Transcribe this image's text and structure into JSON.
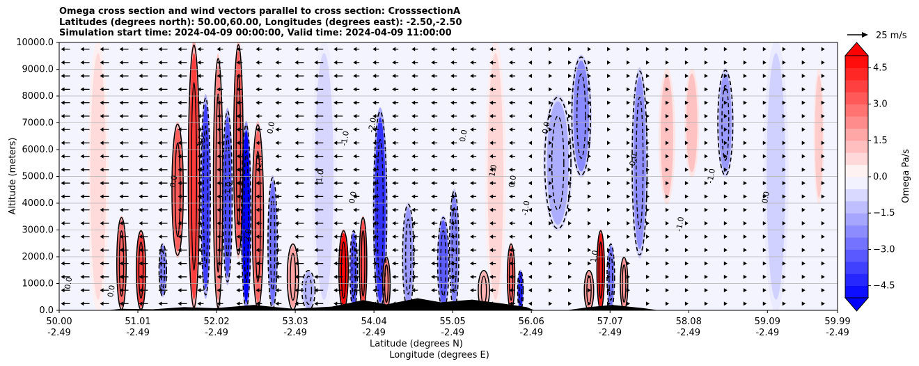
{
  "chart_data": {
    "type": "heatmap",
    "title": [
      "Omega cross section and wind vectors parallel to cross section: CrosssectionA",
      "Latitudes (degrees north): 50.00,60.00, Longitudes (degrees east): -2.50,-2.50",
      "Simulation start time: 2024-04-09 00:00:00, Valid time: 2024-04-09 11:00:00"
    ],
    "ylabel": "Altitude (meters)",
    "xlabel_lines": [
      "Latitude (degrees N)",
      "Longitude (degrees E)"
    ],
    "ylim": [
      0,
      10000
    ],
    "yticks": [
      "0.0",
      "1000.0",
      "2000.0",
      "3000.0",
      "4000.0",
      "5000.0",
      "6000.0",
      "7000.0",
      "8000.0",
      "9000.0",
      "10000.0"
    ],
    "xlim": [
      50.0,
      59.99
    ],
    "xticks": [
      {
        "lat": "50.00",
        "lon": "-2.49",
        "v": 50.0
      },
      {
        "lat": "51.01",
        "lon": "-2.49",
        "v": 51.01
      },
      {
        "lat": "52.02",
        "lon": "-2.49",
        "v": 52.02
      },
      {
        "lat": "53.03",
        "lon": "-2.49",
        "v": 53.03
      },
      {
        "lat": "54.04",
        "lon": "-2.49",
        "v": 54.04
      },
      {
        "lat": "55.05",
        "lon": "-2.49",
        "v": 55.05
      },
      {
        "lat": "56.06",
        "lon": "-2.49",
        "v": 56.06
      },
      {
        "lat": "57.07",
        "lon": "-2.49",
        "v": 57.07
      },
      {
        "lat": "58.08",
        "lon": "-2.49",
        "v": 58.08
      },
      {
        "lat": "59.09",
        "lon": "-2.49",
        "v": 59.09
      },
      {
        "lat": "59.99",
        "lon": "-2.49",
        "v": 59.99
      }
    ],
    "grid": "horizontal",
    "colorbar": {
      "label": "Omega Pa/s",
      "range": [
        -5,
        5
      ],
      "ticks": [
        "4.5",
        "3.0",
        "1.5",
        "0.0",
        "−1.5",
        "−3.0",
        "−4.5"
      ],
      "tick_values": [
        4.5,
        3.0,
        1.5,
        0.0,
        -1.5,
        -3.0,
        -4.5
      ],
      "levels": 20,
      "extend": "both"
    },
    "vector_key": {
      "label": "25 m/s"
    },
    "contour_labels": [
      "0.0",
      "0.0",
      "0.0",
      "1.0",
      "-1.0",
      "2.0",
      "-2.0",
      "0.0",
      "1.0",
      "-1.0",
      "0.0",
      "-2.0",
      "0.0",
      "1.0",
      "0.0",
      "-1.0",
      "0.0",
      "1.0",
      "0.0",
      "-1.0",
      "-1.0",
      "0.0"
    ],
    "omega_features": [
      {
        "lat": 50.8,
        "z0": 0,
        "z1": 3500,
        "val": 3.0,
        "w": 0.05
      },
      {
        "lat": 51.05,
        "z0": 0,
        "z1": 3000,
        "val": 3.8,
        "w": 0.05
      },
      {
        "lat": 51.33,
        "z0": 500,
        "z1": 2500,
        "val": -2.5,
        "w": 0.04
      },
      {
        "lat": 51.52,
        "z0": 2000,
        "z1": 7000,
        "val": 3.2,
        "w": 0.06
      },
      {
        "lat": 51.73,
        "z0": 0,
        "z1": 10000,
        "val": 3.8,
        "w": 0.06
      },
      {
        "lat": 51.88,
        "z0": 500,
        "z1": 8000,
        "val": -3.8,
        "w": 0.05
      },
      {
        "lat": 52.04,
        "z0": 0,
        "z1": 9500,
        "val": 2.5,
        "w": 0.05
      },
      {
        "lat": 52.16,
        "z0": 1000,
        "z1": 7500,
        "val": -3.5,
        "w": 0.05
      },
      {
        "lat": 52.3,
        "z0": 2000,
        "z1": 10000,
        "val": 3.2,
        "w": 0.05
      },
      {
        "lat": 52.4,
        "z0": 0,
        "z1": 7000,
        "val": -5.2,
        "w": 0.05
      },
      {
        "lat": 52.55,
        "z0": 0,
        "z1": 7000,
        "val": 3.0,
        "w": 0.06
      },
      {
        "lat": 52.74,
        "z0": 0,
        "z1": 5000,
        "val": -2.8,
        "w": 0.05
      },
      {
        "lat": 53.0,
        "z0": 0,
        "z1": 2500,
        "val": 1.8,
        "w": 0.06
      },
      {
        "lat": 53.2,
        "z0": 0,
        "z1": 1500,
        "val": -1.5,
        "w": 0.07
      },
      {
        "lat": 53.65,
        "z0": 0,
        "z1": 3000,
        "val": 4.8,
        "w": 0.05
      },
      {
        "lat": 53.78,
        "z0": 0,
        "z1": 3000,
        "val": -3.5,
        "w": 0.04
      },
      {
        "lat": 53.9,
        "z0": 0,
        "z1": 3500,
        "val": 3.5,
        "w": 0.04
      },
      {
        "lat": 54.12,
        "z0": 0,
        "z1": 7500,
        "val": -4.0,
        "w": 0.07
      },
      {
        "lat": 54.2,
        "z0": 0,
        "z1": 2000,
        "val": 2.5,
        "w": 0.04
      },
      {
        "lat": 54.48,
        "z0": 0,
        "z1": 4000,
        "val": -2.0,
        "w": 0.06
      },
      {
        "lat": 54.93,
        "z0": 0,
        "z1": 3500,
        "val": -3.2,
        "w": 0.06
      },
      {
        "lat": 55.07,
        "z0": 0,
        "z1": 4500,
        "val": -2.5,
        "w": 0.05
      },
      {
        "lat": 55.45,
        "z0": 0,
        "z1": 1500,
        "val": 1.5,
        "w": 0.06
      },
      {
        "lat": 55.8,
        "z0": 0,
        "z1": 2500,
        "val": 3.0,
        "w": 0.04
      },
      {
        "lat": 55.92,
        "z0": 0,
        "z1": 1500,
        "val": -4.5,
        "w": 0.03
      },
      {
        "lat": 56.8,
        "z0": 0,
        "z1": 1500,
        "val": 2.0,
        "w": 0.05
      },
      {
        "lat": 56.95,
        "z0": 0,
        "z1": 3000,
        "val": 4.5,
        "w": 0.04
      },
      {
        "lat": 57.08,
        "z0": 0,
        "z1": 2500,
        "val": -2.8,
        "w": 0.04
      },
      {
        "lat": 57.25,
        "z0": 0,
        "z1": 2000,
        "val": 2.0,
        "w": 0.04
      },
      {
        "lat": 57.45,
        "z0": 2000,
        "z1": 9000,
        "val": -2.2,
        "w": 0.08
      },
      {
        "lat": 57.8,
        "z0": 4000,
        "z1": 9000,
        "val": 1.2,
        "w": 0.08
      },
      {
        "lat": 58.12,
        "z0": 5000,
        "z1": 9000,
        "val": 1.2,
        "w": 0.07
      },
      {
        "lat": 58.55,
        "z0": 5000,
        "z1": 9000,
        "val": -2.0,
        "w": 0.08
      },
      {
        "lat": 56.7,
        "z0": 5000,
        "z1": 9500,
        "val": -2.3,
        "w": 0.1
      },
      {
        "lat": 56.4,
        "z0": 3000,
        "z1": 8000,
        "val": -1.6,
        "w": 0.14
      },
      {
        "lat": 55.6,
        "z0": 0,
        "z1": 10000,
        "val": 0.8,
        "w": 0.1
      },
      {
        "lat": 53.4,
        "z0": 0,
        "z1": 10000,
        "val": -0.8,
        "w": 0.12
      },
      {
        "lat": 50.5,
        "z0": 0,
        "z1": 10000,
        "val": 0.7,
        "w": 0.1
      },
      {
        "lat": 59.2,
        "z0": 0,
        "z1": 10000,
        "val": -0.9,
        "w": 0.12
      },
      {
        "lat": 59.75,
        "z0": 4000,
        "z1": 9000,
        "val": 1.0,
        "w": 0.05
      }
    ]
  }
}
